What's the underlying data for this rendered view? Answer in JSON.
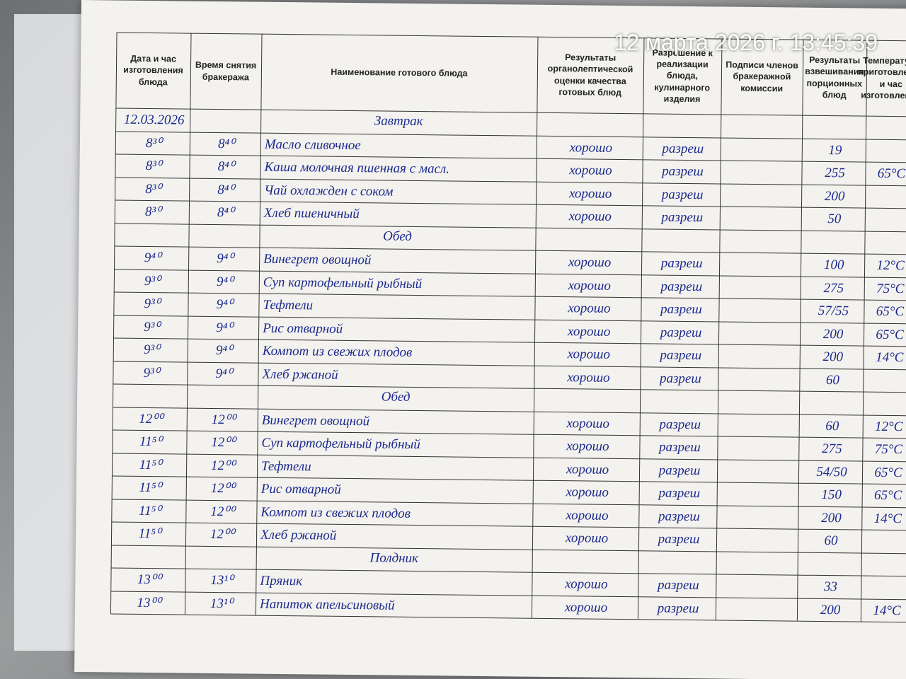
{
  "timestamp": "12 марта 2026 г. 13:45:39",
  "header": [
    "Дата и час изготовления блюда",
    "Время снятия бракеража",
    "Наименование готового блюда",
    "Результаты органолептической оценки качества готовых блюд",
    "Разрешение к реализации блюда, кулинарного изделия",
    "Подписи членов бракеражной комиссии",
    "Результаты взвешивания порционных блюд",
    "Температура приготовления и час изготовления"
  ],
  "rows": [
    {
      "made": "12.03.2026",
      "section": "Завтрак"
    },
    {
      "made": "8³⁰",
      "taken": "8⁴⁰",
      "dish": "Масло сливочное",
      "quality": "хорошо",
      "permit": "разреш",
      "weight": "19"
    },
    {
      "made": "8³⁰",
      "taken": "8⁴⁰",
      "dish": "Каша молочная пшенная с масл.",
      "quality": "хорошо",
      "permit": "разреш",
      "weight": "255",
      "temp": "65°C"
    },
    {
      "made": "8³⁰",
      "taken": "8⁴⁰",
      "dish": "Чай охлажден с соком",
      "quality": "хорошо",
      "permit": "разреш",
      "weight": "200"
    },
    {
      "made": "8³⁰",
      "taken": "8⁴⁰",
      "dish": "Хлеб пшеничный",
      "quality": "хорошо",
      "permit": "разреш",
      "weight": "50"
    },
    {
      "section": "Обед"
    },
    {
      "made": "9⁴⁰",
      "taken": "9⁴⁰",
      "dish": "Винегрет овощной",
      "quality": "хорошо",
      "permit": "разреш",
      "weight": "100",
      "temp": "12°C"
    },
    {
      "made": "9³⁰",
      "taken": "9⁴⁰",
      "dish": "Суп картофельный рыбный",
      "quality": "хорошо",
      "permit": "разреш",
      "weight": "275",
      "temp": "75°C"
    },
    {
      "made": "9³⁰",
      "taken": "9⁴⁰",
      "dish": "Тефтели",
      "quality": "хорошо",
      "permit": "разреш",
      "weight": "57/55",
      "temp": "65°C"
    },
    {
      "made": "9³⁰",
      "taken": "9⁴⁰",
      "dish": "Рис отварной",
      "quality": "хорошо",
      "permit": "разреш",
      "weight": "200",
      "temp": "65°C"
    },
    {
      "made": "9³⁰",
      "taken": "9⁴⁰",
      "dish": "Компот из свежих плодов",
      "quality": "хорошо",
      "permit": "разреш",
      "weight": "200",
      "temp": "14°C"
    },
    {
      "made": "9³⁰",
      "taken": "9⁴⁰",
      "dish": "Хлеб ржаной",
      "quality": "хорошо",
      "permit": "разреш",
      "weight": "60"
    },
    {
      "section": "Обед"
    },
    {
      "made": "12⁰⁰",
      "taken": "12⁰⁰",
      "dish": "Винегрет овощной",
      "quality": "хорошо",
      "permit": "разреш",
      "weight": "60",
      "temp": "12°C"
    },
    {
      "made": "11⁵⁰",
      "taken": "12⁰⁰",
      "dish": "Суп картофельный рыбный",
      "quality": "хорошо",
      "permit": "разреш",
      "weight": "275",
      "temp": "75°C"
    },
    {
      "made": "11⁵⁰",
      "taken": "12⁰⁰",
      "dish": "Тефтели",
      "quality": "хорошо",
      "permit": "разреш",
      "weight": "54/50",
      "temp": "65°C"
    },
    {
      "made": "11⁵⁰",
      "taken": "12⁰⁰",
      "dish": "Рис отварной",
      "quality": "хорошо",
      "permit": "разреш",
      "weight": "150",
      "temp": "65°C"
    },
    {
      "made": "11⁵⁰",
      "taken": "12⁰⁰",
      "dish": "Компот из свежих плодов",
      "quality": "хорошо",
      "permit": "разреш",
      "weight": "200",
      "temp": "14°C"
    },
    {
      "made": "11⁵⁰",
      "taken": "12⁰⁰",
      "dish": "Хлеб ржаной",
      "quality": "хорошо",
      "permit": "разреш",
      "weight": "60"
    },
    {
      "section": "Полдник"
    },
    {
      "made": "13⁰⁰",
      "taken": "13¹⁰",
      "dish": "Пряник",
      "quality": "хорошо",
      "permit": "разреш",
      "weight": "33"
    },
    {
      "made": "13⁰⁰",
      "taken": "13¹⁰",
      "dish": "Напиток апельсиновый",
      "quality": "хорошо",
      "permit": "разреш",
      "weight": "200",
      "temp": "14°C"
    }
  ]
}
